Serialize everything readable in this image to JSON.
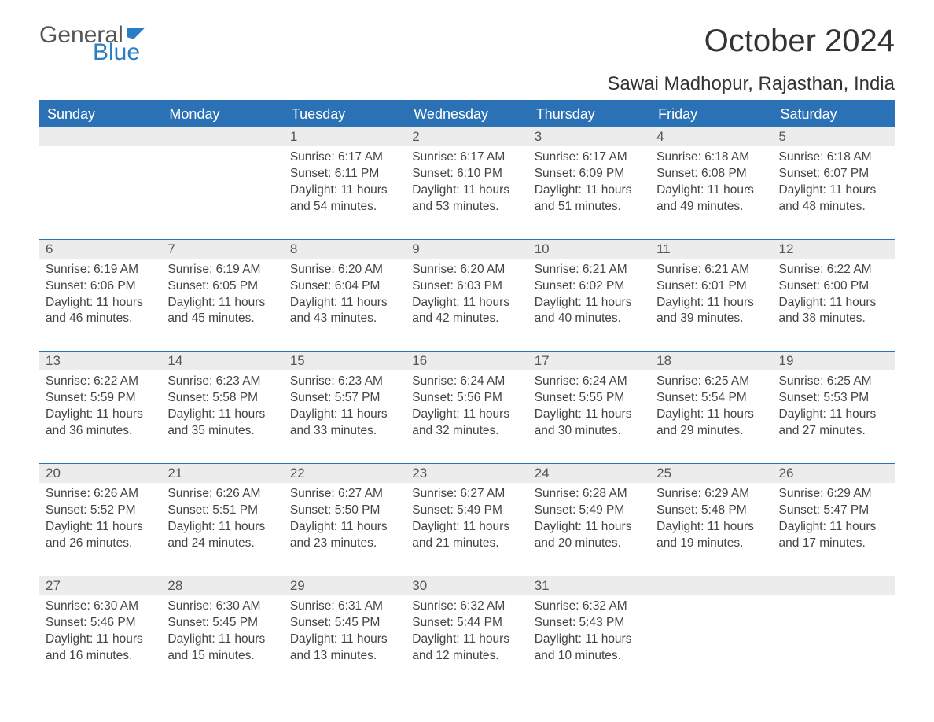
{
  "brand": {
    "part1": "General",
    "part2": "Blue"
  },
  "title": "October 2024",
  "location": "Sawai Madhopur, Rajasthan, India",
  "colors": {
    "header_bg": "#2a72b5",
    "header_text": "#ffffff",
    "daynum_bg": "#ececec",
    "text": "#444444",
    "brand_blue": "#2a7ec4",
    "page_bg": "#ffffff"
  },
  "weekdays": [
    "Sunday",
    "Monday",
    "Tuesday",
    "Wednesday",
    "Thursday",
    "Friday",
    "Saturday"
  ],
  "weeks": [
    [
      null,
      null,
      {
        "n": "1",
        "sunrise": "6:17 AM",
        "sunset": "6:11 PM",
        "daylight": "11 hours and 54 minutes."
      },
      {
        "n": "2",
        "sunrise": "6:17 AM",
        "sunset": "6:10 PM",
        "daylight": "11 hours and 53 minutes."
      },
      {
        "n": "3",
        "sunrise": "6:17 AM",
        "sunset": "6:09 PM",
        "daylight": "11 hours and 51 minutes."
      },
      {
        "n": "4",
        "sunrise": "6:18 AM",
        "sunset": "6:08 PM",
        "daylight": "11 hours and 49 minutes."
      },
      {
        "n": "5",
        "sunrise": "6:18 AM",
        "sunset": "6:07 PM",
        "daylight": "11 hours and 48 minutes."
      }
    ],
    [
      {
        "n": "6",
        "sunrise": "6:19 AM",
        "sunset": "6:06 PM",
        "daylight": "11 hours and 46 minutes."
      },
      {
        "n": "7",
        "sunrise": "6:19 AM",
        "sunset": "6:05 PM",
        "daylight": "11 hours and 45 minutes."
      },
      {
        "n": "8",
        "sunrise": "6:20 AM",
        "sunset": "6:04 PM",
        "daylight": "11 hours and 43 minutes."
      },
      {
        "n": "9",
        "sunrise": "6:20 AM",
        "sunset": "6:03 PM",
        "daylight": "11 hours and 42 minutes."
      },
      {
        "n": "10",
        "sunrise": "6:21 AM",
        "sunset": "6:02 PM",
        "daylight": "11 hours and 40 minutes."
      },
      {
        "n": "11",
        "sunrise": "6:21 AM",
        "sunset": "6:01 PM",
        "daylight": "11 hours and 39 minutes."
      },
      {
        "n": "12",
        "sunrise": "6:22 AM",
        "sunset": "6:00 PM",
        "daylight": "11 hours and 38 minutes."
      }
    ],
    [
      {
        "n": "13",
        "sunrise": "6:22 AM",
        "sunset": "5:59 PM",
        "daylight": "11 hours and 36 minutes."
      },
      {
        "n": "14",
        "sunrise": "6:23 AM",
        "sunset": "5:58 PM",
        "daylight": "11 hours and 35 minutes."
      },
      {
        "n": "15",
        "sunrise": "6:23 AM",
        "sunset": "5:57 PM",
        "daylight": "11 hours and 33 minutes."
      },
      {
        "n": "16",
        "sunrise": "6:24 AM",
        "sunset": "5:56 PM",
        "daylight": "11 hours and 32 minutes."
      },
      {
        "n": "17",
        "sunrise": "6:24 AM",
        "sunset": "5:55 PM",
        "daylight": "11 hours and 30 minutes."
      },
      {
        "n": "18",
        "sunrise": "6:25 AM",
        "sunset": "5:54 PM",
        "daylight": "11 hours and 29 minutes."
      },
      {
        "n": "19",
        "sunrise": "6:25 AM",
        "sunset": "5:53 PM",
        "daylight": "11 hours and 27 minutes."
      }
    ],
    [
      {
        "n": "20",
        "sunrise": "6:26 AM",
        "sunset": "5:52 PM",
        "daylight": "11 hours and 26 minutes."
      },
      {
        "n": "21",
        "sunrise": "6:26 AM",
        "sunset": "5:51 PM",
        "daylight": "11 hours and 24 minutes."
      },
      {
        "n": "22",
        "sunrise": "6:27 AM",
        "sunset": "5:50 PM",
        "daylight": "11 hours and 23 minutes."
      },
      {
        "n": "23",
        "sunrise": "6:27 AM",
        "sunset": "5:49 PM",
        "daylight": "11 hours and 21 minutes."
      },
      {
        "n": "24",
        "sunrise": "6:28 AM",
        "sunset": "5:49 PM",
        "daylight": "11 hours and 20 minutes."
      },
      {
        "n": "25",
        "sunrise": "6:29 AM",
        "sunset": "5:48 PM",
        "daylight": "11 hours and 19 minutes."
      },
      {
        "n": "26",
        "sunrise": "6:29 AM",
        "sunset": "5:47 PM",
        "daylight": "11 hours and 17 minutes."
      }
    ],
    [
      {
        "n": "27",
        "sunrise": "6:30 AM",
        "sunset": "5:46 PM",
        "daylight": "11 hours and 16 minutes."
      },
      {
        "n": "28",
        "sunrise": "6:30 AM",
        "sunset": "5:45 PM",
        "daylight": "11 hours and 15 minutes."
      },
      {
        "n": "29",
        "sunrise": "6:31 AM",
        "sunset": "5:45 PM",
        "daylight": "11 hours and 13 minutes."
      },
      {
        "n": "30",
        "sunrise": "6:32 AM",
        "sunset": "5:44 PM",
        "daylight": "11 hours and 12 minutes."
      },
      {
        "n": "31",
        "sunrise": "6:32 AM",
        "sunset": "5:43 PM",
        "daylight": "11 hours and 10 minutes."
      },
      null,
      null
    ]
  ],
  "labels": {
    "sunrise": "Sunrise: ",
    "sunset": "Sunset: ",
    "daylight": "Daylight: "
  }
}
